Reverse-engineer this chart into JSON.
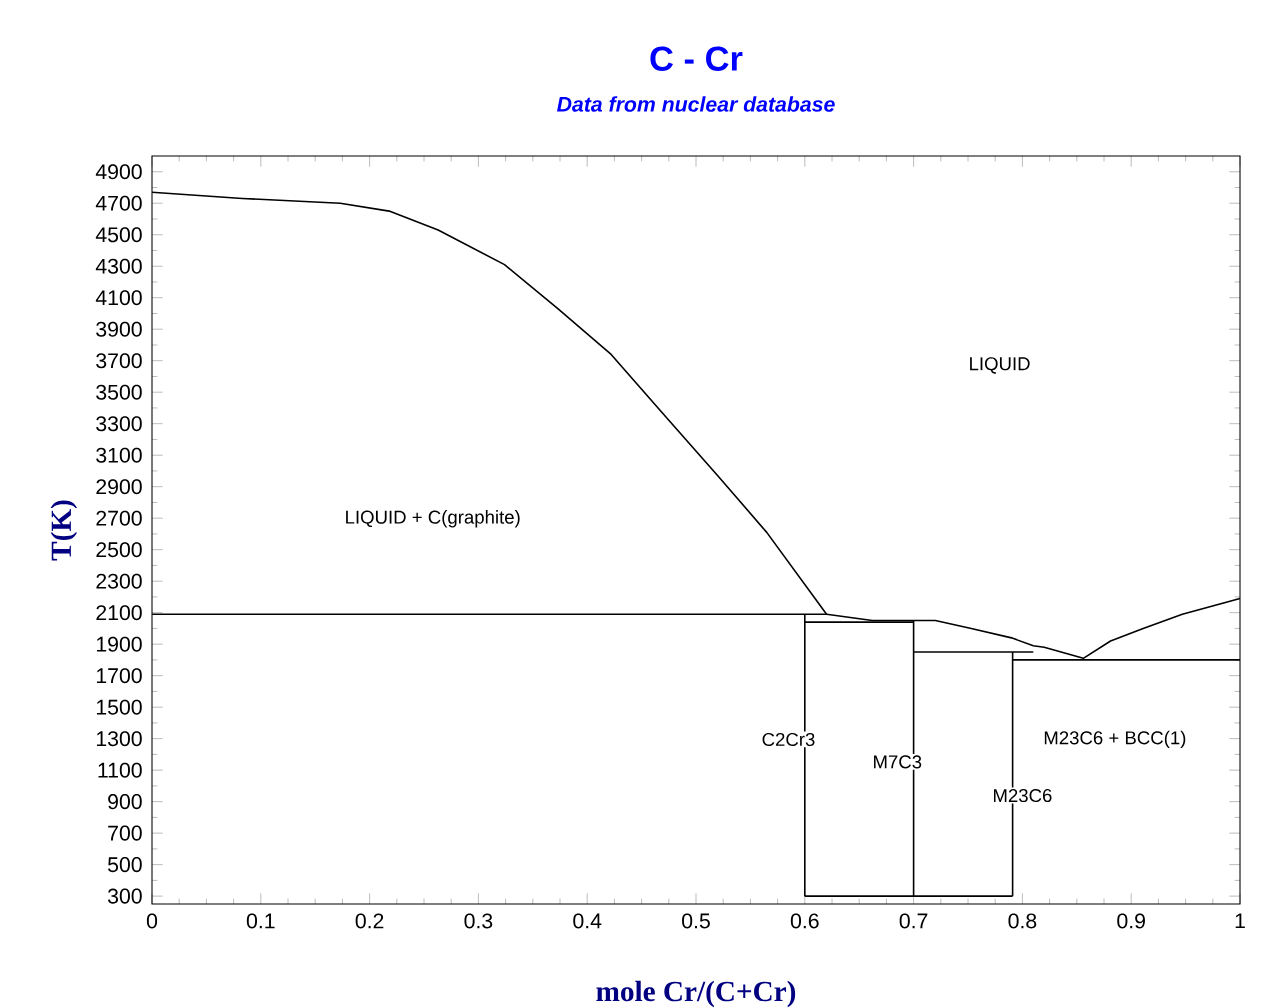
{
  "chart_data": {
    "type": "line",
    "title": "C - Cr",
    "subtitle": "Data from nuclear database",
    "xlabel": "mole Cr/(C+Cr)",
    "ylabel": "T(K)",
    "xlim": [
      0,
      1
    ],
    "ylim": [
      250,
      5000
    ],
    "xticks": [
      0,
      0.1,
      0.2,
      0.3,
      0.4,
      0.5,
      0.6,
      0.7,
      0.8,
      0.9,
      1
    ],
    "yticks": [
      300,
      500,
      700,
      900,
      1100,
      1300,
      1500,
      1700,
      1900,
      2100,
      2300,
      2500,
      2700,
      2900,
      3100,
      3300,
      3500,
      3700,
      3900,
      4100,
      4300,
      4500,
      4700,
      4900
    ],
    "grid": false,
    "series": [
      {
        "color": "#000000",
        "x": [
          0,
          0.083,
          0.173,
          0.218,
          0.263,
          0.324,
          0.373,
          0.422,
          0.474,
          0.52,
          0.565,
          0.62
        ],
        "values": [
          4770,
          4730,
          4700,
          4650,
          4530,
          4310,
          4030,
          3740,
          3330,
          2970,
          2610,
          2090
        ]
      },
      {
        "color": "#000000",
        "x": [
          0,
          0.62,
          0.662,
          0.699,
          0.72,
          0.753,
          0.79,
          0.81,
          0.82,
          0.856,
          0.881,
          0.911,
          0.947,
          1.0
        ],
        "values": [
          2090,
          2090,
          2050,
          2050,
          2050,
          2000,
          1940,
          1890,
          1880,
          1810,
          1920,
          2000,
          2090,
          2190
        ]
      },
      {
        "color": "#000000",
        "x": [
          0.6,
          0.6
        ],
        "values": [
          2090,
          300
        ]
      },
      {
        "color": "#000000",
        "x": [
          0.6,
          0.7
        ],
        "values": [
          2040,
          2040
        ]
      },
      {
        "color": "#000000",
        "x": [
          0.7,
          0.7
        ],
        "values": [
          2050,
          300
        ]
      },
      {
        "color": "#000000",
        "x": [
          0.6,
          0.791
        ],
        "values": [
          300,
          300
        ]
      },
      {
        "color": "#000000",
        "x": [
          0.7,
          0.81
        ],
        "values": [
          1850,
          1850
        ]
      },
      {
        "color": "#000000",
        "x": [
          0.791,
          0.791
        ],
        "values": [
          1850,
          300
        ]
      },
      {
        "color": "#000000",
        "x": [
          0.791,
          1.0
        ],
        "values": [
          1800,
          1800
        ]
      }
    ],
    "annotations": [
      "LIQUID",
      "LIQUID + C(graphite)",
      "C2Cr3",
      "M7C3",
      "M23C6",
      "M23C6 + BCC(1)"
    ]
  }
}
